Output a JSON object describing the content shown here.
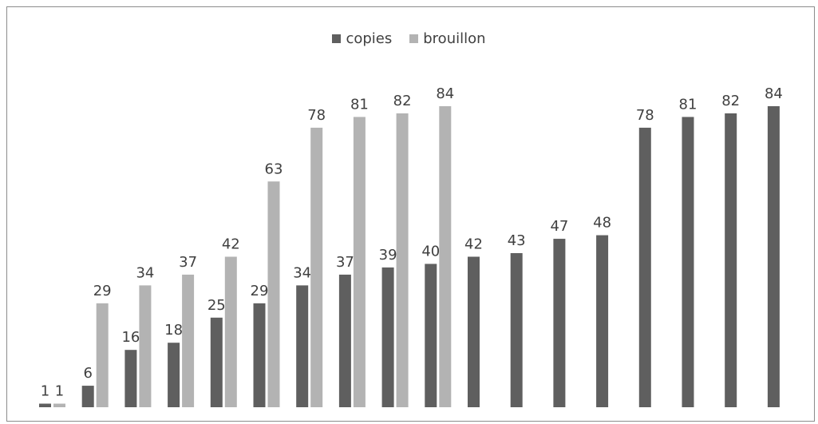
{
  "chart_data": {
    "type": "bar",
    "categories": [
      "",
      "",
      "",
      "",
      "",
      "",
      "",
      "",
      "",
      "",
      "",
      "",
      "",
      "",
      "",
      "",
      "",
      ""
    ],
    "series": [
      {
        "name": "copies",
        "color": "#5f5f5f",
        "values": [
          1,
          6,
          16,
          18,
          25,
          29,
          34,
          37,
          39,
          40,
          42,
          43,
          47,
          48,
          78,
          81,
          82,
          84
        ]
      },
      {
        "name": "brouillon",
        "color": "#b3b3b3",
        "values": [
          1,
          29,
          34,
          37,
          42,
          63,
          78,
          81,
          82,
          84,
          null,
          null,
          null,
          null,
          null,
          null,
          null,
          null
        ]
      }
    ],
    "data_labels": true,
    "legend": "top-center",
    "grid": false,
    "ylim": [
      0,
      84
    ]
  }
}
